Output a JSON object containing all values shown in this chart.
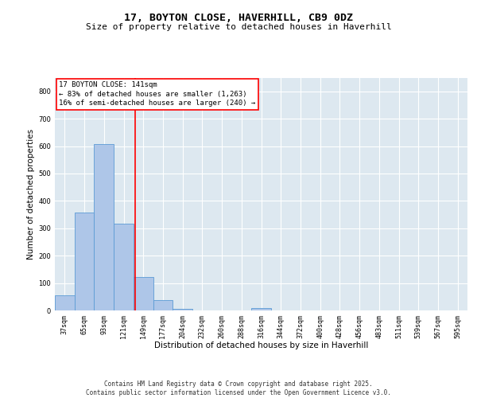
{
  "title_line1": "17, BOYTON CLOSE, HAVERHILL, CB9 0DZ",
  "title_line2": "Size of property relative to detached houses in Haverhill",
  "xlabel": "Distribution of detached houses by size in Haverhill",
  "ylabel": "Number of detached properties",
  "bar_color": "#aec6e8",
  "bar_edge_color": "#5b9bd5",
  "background_color": "#dde8f0",
  "grid_color": "#ffffff",
  "fig_background": "#ffffff",
  "bins": [
    "37sqm",
    "65sqm",
    "93sqm",
    "121sqm",
    "149sqm",
    "177sqm",
    "204sqm",
    "232sqm",
    "260sqm",
    "288sqm",
    "316sqm",
    "344sqm",
    "372sqm",
    "400sqm",
    "428sqm",
    "456sqm",
    "483sqm",
    "511sqm",
    "539sqm",
    "567sqm",
    "595sqm"
  ],
  "values": [
    55,
    358,
    608,
    318,
    122,
    38,
    5,
    0,
    0,
    0,
    10,
    0,
    0,
    0,
    0,
    0,
    0,
    0,
    0,
    0,
    0
  ],
  "ylim": [
    0,
    850
  ],
  "yticks": [
    0,
    100,
    200,
    300,
    400,
    500,
    600,
    700,
    800
  ],
  "annotation_line1": "17 BOYTON CLOSE: 141sqm",
  "annotation_line2": "← 83% of detached houses are smaller (1,263)",
  "annotation_line3": "16% of semi-detached houses are larger (240) →",
  "vline_bin_index": 3.57,
  "footer": "Contains HM Land Registry data © Crown copyright and database right 2025.\nContains public sector information licensed under the Open Government Licence v3.0.",
  "title_fontsize": 9.5,
  "subtitle_fontsize": 8,
  "axis_label_fontsize": 7.5,
  "tick_fontsize": 6,
  "annotation_fontsize": 6.5,
  "footer_fontsize": 5.5
}
